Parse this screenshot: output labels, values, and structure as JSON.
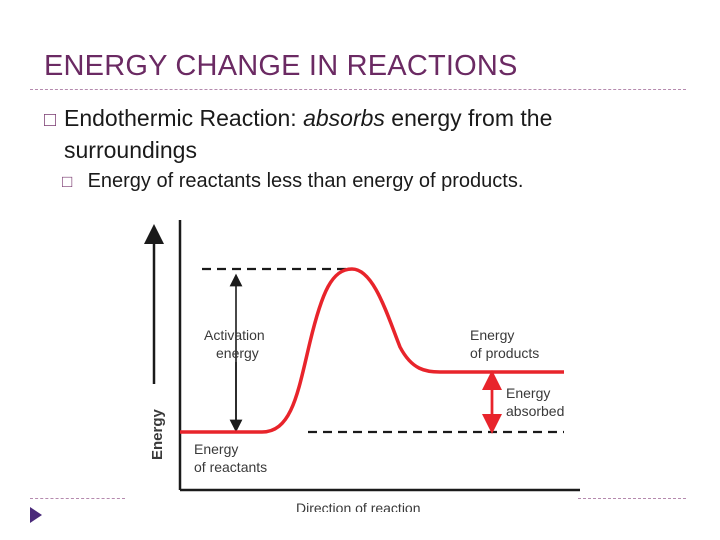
{
  "slide": {
    "title": "ENERGY CHANGE IN REACTIONS",
    "bullet1": {
      "term": "Endothermic",
      "term2": "Reaction",
      "colon": ":",
      "italic": "absorbs",
      "rest": "energy from the",
      "rest2": "surroundings"
    },
    "bullet2": {
      "pre": "Energy of reactants",
      "strong": "less than",
      "post": "energy of products."
    },
    "bullet_glyph": "□"
  },
  "diagram": {
    "y_axis_label": "Energy",
    "x_axis_label": "Direction of reaction",
    "activation_label_1": "Activation",
    "activation_label_2": "energy",
    "products_label_1": "Energy",
    "products_label_2": "of products",
    "absorbed_label_1": "Energy",
    "absorbed_label_2": "absorbed",
    "reactants_label_1": "Energy",
    "reactants_label_2": "of reactants",
    "curve_color": "#e8242b",
    "arrow_color": "#e8242b",
    "axis_color": "#1a1a1a"
  }
}
